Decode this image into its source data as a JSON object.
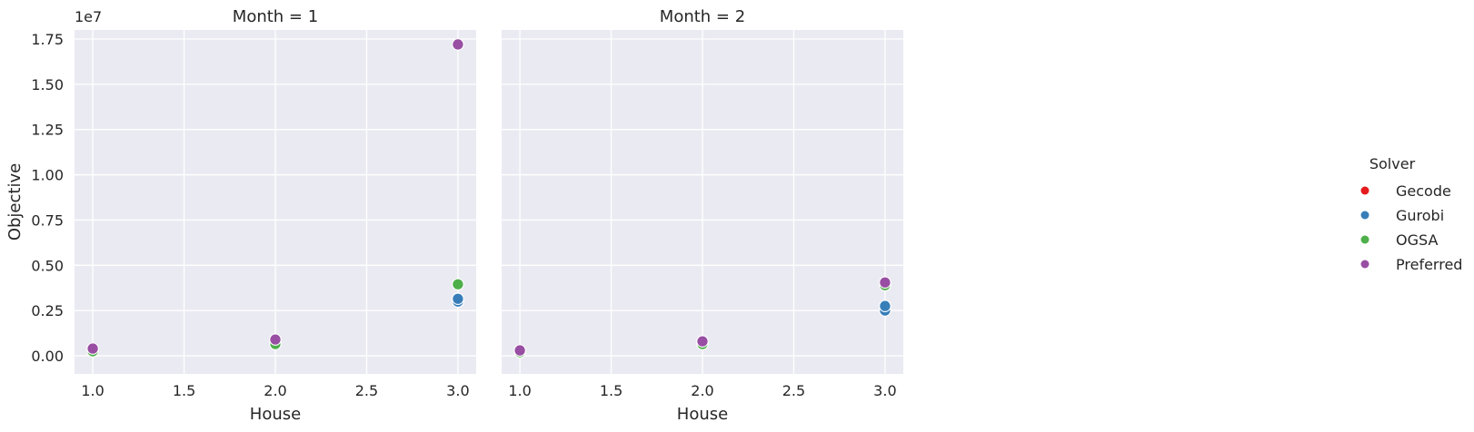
{
  "chart_data": {
    "type": "scatter",
    "layout": "facet-grid",
    "x_label": "House",
    "y_label": "Objective",
    "y_offset_label": "1e7",
    "y_scale": 10000000,
    "xlim": [
      0.9,
      3.1
    ],
    "ylim": [
      -0.1,
      1.8
    ],
    "x_ticks": [
      1.0,
      1.5,
      2.0,
      2.5,
      3.0
    ],
    "x_tick_labels": [
      "1.0",
      "1.5",
      "2.0",
      "2.5",
      "3.0"
    ],
    "y_ticks": [
      0.0,
      0.25,
      0.5,
      0.75,
      1.0,
      1.25,
      1.5,
      1.75
    ],
    "y_tick_labels": [
      "0.00",
      "0.25",
      "0.50",
      "0.75",
      "1.00",
      "1.25",
      "1.50",
      "1.75"
    ],
    "grid": true,
    "legend": {
      "title": "Solver",
      "placement": "right",
      "entries": [
        {
          "name": "Gecode",
          "color": "#e41a1c"
        },
        {
          "name": "Gurobi",
          "color": "#377eb8"
        },
        {
          "name": "OGSA",
          "color": "#4daf4a"
        },
        {
          "name": "Preferred",
          "color": "#984ea3"
        }
      ]
    },
    "panels": [
      {
        "title": "Month = 1",
        "series": [
          {
            "name": "Gecode",
            "points": []
          },
          {
            "name": "Gurobi",
            "points": [
              {
                "x": 1.0,
                "y": 0.03
              },
              {
                "x": 2.0,
                "y": 0.07
              },
              {
                "x": 3.0,
                "y": 0.3
              },
              {
                "x": 3.0,
                "y": 0.315
              }
            ]
          },
          {
            "name": "OGSA",
            "points": [
              {
                "x": 1.0,
                "y": 0.025
              },
              {
                "x": 2.0,
                "y": 0.065
              },
              {
                "x": 3.0,
                "y": 0.395
              }
            ]
          },
          {
            "name": "Preferred",
            "points": [
              {
                "x": 1.0,
                "y": 0.04
              },
              {
                "x": 2.0,
                "y": 0.09
              },
              {
                "x": 3.0,
                "y": 1.72
              }
            ]
          }
        ]
      },
      {
        "title": "Month = 2",
        "series": [
          {
            "name": "Gecode",
            "points": []
          },
          {
            "name": "Gurobi",
            "points": [
              {
                "x": 1.0,
                "y": 0.02
              },
              {
                "x": 2.0,
                "y": 0.07
              },
              {
                "x": 3.0,
                "y": 0.25
              },
              {
                "x": 3.0,
                "y": 0.275
              }
            ]
          },
          {
            "name": "OGSA",
            "points": [
              {
                "x": 1.0,
                "y": 0.02
              },
              {
                "x": 2.0,
                "y": 0.065
              },
              {
                "x": 3.0,
                "y": 0.39
              }
            ]
          },
          {
            "name": "Preferred",
            "points": [
              {
                "x": 1.0,
                "y": 0.03
              },
              {
                "x": 2.0,
                "y": 0.08
              },
              {
                "x": 3.0,
                "y": 0.405
              }
            ]
          }
        ]
      }
    ]
  }
}
